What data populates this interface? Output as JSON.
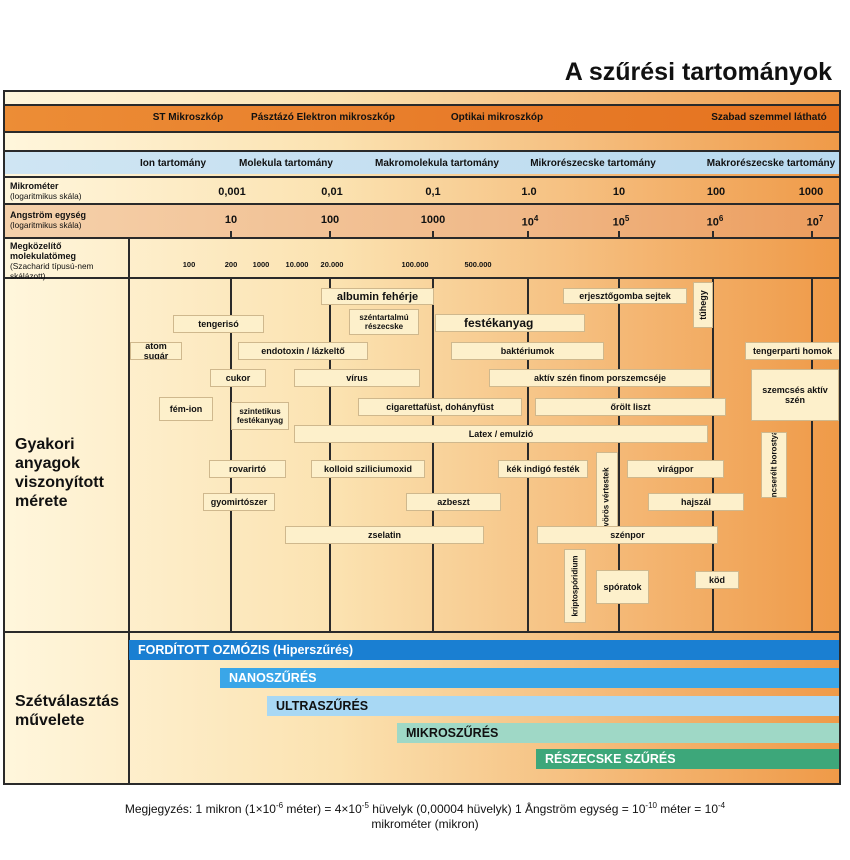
{
  "title": "A szűrési tartományok",
  "microscopes": [
    "ST Mikroszkóp",
    "Pásztázó Elektron mikroszkóp",
    "Optikai mikroszkóp",
    "Szabad szemmel látható"
  ],
  "ranges": [
    "Ion tartomány",
    "Molekula tartomány",
    "Makromolekula tartomány",
    "Mikrorészecske tartomány",
    "Makrorészecske tartomány"
  ],
  "rows": {
    "micrometer_label": "Mikrométer",
    "micrometer_sub": "(logaritmikus skála)",
    "micrometer_values": [
      "0,001",
      "0,01",
      "0,1",
      "1.0",
      "10",
      "100",
      "1000"
    ],
    "angstrom_label": "Angström egység",
    "angstrom_sub": "(logaritmikus skála)",
    "angstrom_values": [
      "10",
      "100",
      "1000",
      "10",
      "10",
      "10",
      "10"
    ],
    "angstrom_exponents": [
      "",
      "",
      "",
      "4",
      "5",
      "6",
      "7"
    ],
    "mw_label": "Megközelítő molekulatömeg",
    "mw_sub": "(Szacharid típusú-nem skálázott)",
    "mw_values": [
      "100",
      "200",
      "1000",
      "10.000",
      "20.000",
      "100.000",
      "500.000"
    ]
  },
  "side_labels": {
    "materials": "Gyakori anyagok viszonyított mérete",
    "processes": "Szétválasztás művelete"
  },
  "materials": [
    "albumin fehérje",
    "erjesztőgomba sejtek",
    "tűhegy",
    "tengerisó",
    "széntartalmú részecske",
    "festékanyag",
    "atom sugár",
    "endotoxin / lázkeltő",
    "baktériumok",
    "tengerparti homok",
    "cukor",
    "vírus",
    "aktív szén finom porszemcséje",
    "szemcsés aktív szén",
    "fém-ion",
    "szintetikus festékanyag",
    "cigarettafüst, dohányfüst",
    "őrölt liszt",
    "Latex / emulzió",
    "rovarirtó",
    "kolloid sziliciumoxid",
    "kék indigó festék",
    "vörös vértestek",
    "virágpor",
    "Ioncserélt borostyán",
    "gyomirtószer",
    "azbeszt",
    "hajszál",
    "zselatin",
    "szénpor",
    "kriptospóridium",
    "spóratok",
    "köd"
  ],
  "processes": [
    {
      "name": "FORDÍTOTT OZMÓZIS (Hiperszűrés)",
      "color": "#1a7fd2"
    },
    {
      "name": "NANOSZŰRÉS",
      "color": "#3aa6e8"
    },
    {
      "name": "ULTRASZŰRÉS",
      "color": "#a8d8f4"
    },
    {
      "name": "MIKROSZŰRÉS",
      "color": "#9fd8c6"
    },
    {
      "name": "RÉSZECSKE SZŰRÉS",
      "color": "#3da77a"
    }
  ],
  "note_line1": "Megjegyzés: 1 mikron (1×10",
  "note_exp1": "-6",
  "note_line1b": " méter) = 4×10",
  "note_exp2": "-5",
  "note_line1c": " hüvelyk (0,00004 hüvelyk) 1 Ångström egység = 10",
  "note_exp3": "-10",
  "note_line1d": " méter = 10",
  "note_exp4": "-4",
  "note_line2": "mikrométer (mikron)"
}
